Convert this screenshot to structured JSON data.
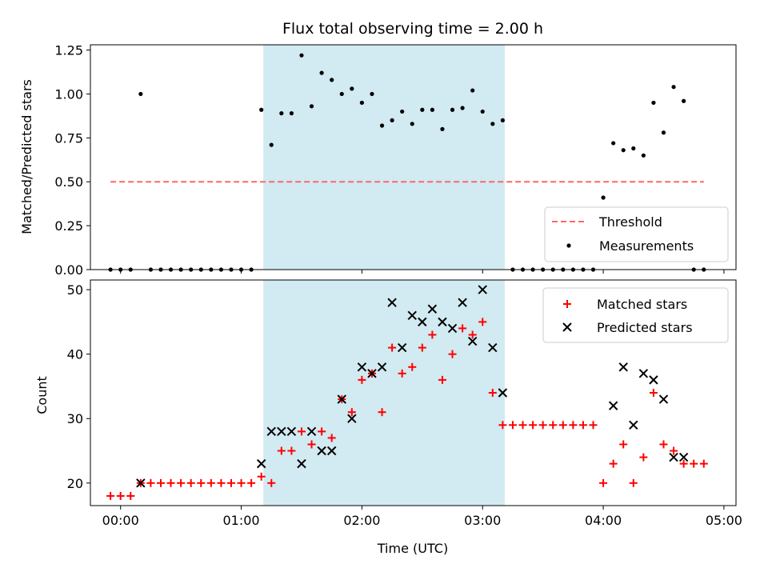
{
  "chart_data": [
    {
      "type": "scatter",
      "title": "Flux total observing time = 2.00 h",
      "ylabel": "Matched/Predicted stars",
      "xlabel": "",
      "ylim": [
        0.0,
        1.28
      ],
      "yticks": [
        "0.00",
        "0.25",
        "0.50",
        "0.75",
        "1.00",
        "1.25"
      ],
      "xlim": [
        "23:45",
        "05:06"
      ],
      "xtick_positions": [
        "00:00",
        "01:00",
        "02:00",
        "03:00",
        "04:00",
        "05:00"
      ],
      "shaded_interval": [
        "01:11",
        "03:11"
      ],
      "shade_color": "#add8e6",
      "threshold": {
        "name": "Threshold",
        "value": 0.5,
        "x_range": [
          "23:55",
          "04:50"
        ],
        "color": "#ff6666"
      },
      "measurements": {
        "name": "Measurements",
        "color": "#000000",
        "points": [
          [
            "23:55",
            0.0
          ],
          [
            "00:00",
            0.0
          ],
          [
            "00:05",
            0.0
          ],
          [
            "00:10",
            1.0
          ],
          [
            "00:15",
            0.0
          ],
          [
            "00:20",
            0.0
          ],
          [
            "00:25",
            0.0
          ],
          [
            "00:30",
            0.0
          ],
          [
            "00:35",
            0.0
          ],
          [
            "00:40",
            0.0
          ],
          [
            "00:45",
            0.0
          ],
          [
            "00:50",
            0.0
          ],
          [
            "00:55",
            0.0
          ],
          [
            "01:00",
            0.0
          ],
          [
            "01:05",
            0.0
          ],
          [
            "01:10",
            0.91
          ],
          [
            "01:15",
            0.71
          ],
          [
            "01:20",
            0.89
          ],
          [
            "01:25",
            0.89
          ],
          [
            "01:30",
            1.22
          ],
          [
            "01:35",
            0.93
          ],
          [
            "01:40",
            1.12
          ],
          [
            "01:45",
            1.08
          ],
          [
            "01:50",
            1.0
          ],
          [
            "01:55",
            1.03
          ],
          [
            "02:00",
            0.95
          ],
          [
            "02:05",
            1.0
          ],
          [
            "02:10",
            0.82
          ],
          [
            "02:15",
            0.85
          ],
          [
            "02:20",
            0.9
          ],
          [
            "02:25",
            0.83
          ],
          [
            "02:30",
            0.91
          ],
          [
            "02:35",
            0.91
          ],
          [
            "02:40",
            0.8
          ],
          [
            "02:45",
            0.91
          ],
          [
            "02:50",
            0.92
          ],
          [
            "02:55",
            1.02
          ],
          [
            "03:00",
            0.9
          ],
          [
            "03:05",
            0.83
          ],
          [
            "03:10",
            0.85
          ],
          [
            "03:15",
            0.0
          ],
          [
            "03:20",
            0.0
          ],
          [
            "03:25",
            0.0
          ],
          [
            "03:30",
            0.0
          ],
          [
            "03:35",
            0.0
          ],
          [
            "03:40",
            0.0
          ],
          [
            "03:45",
            0.0
          ],
          [
            "03:50",
            0.0
          ],
          [
            "03:55",
            0.0
          ],
          [
            "04:00",
            0.41
          ],
          [
            "04:05",
            0.72
          ],
          [
            "04:10",
            0.68
          ],
          [
            "04:15",
            0.69
          ],
          [
            "04:20",
            0.65
          ],
          [
            "04:25",
            0.95
          ],
          [
            "04:30",
            0.78
          ],
          [
            "04:35",
            1.04
          ],
          [
            "04:40",
            0.96
          ],
          [
            "04:45",
            0.0
          ],
          [
            "04:50",
            0.0
          ]
        ]
      },
      "legend": {
        "position": "lower right",
        "entries": [
          "Threshold",
          "Measurements"
        ]
      }
    },
    {
      "type": "scatter",
      "title": "",
      "ylabel": "Count",
      "xlabel": "Time (UTC)",
      "ylim": [
        16.5,
        51.5
      ],
      "yticks": [
        "20",
        "30",
        "40",
        "50"
      ],
      "xlim": [
        "23:45",
        "05:06"
      ],
      "xticks": [
        "00:00",
        "01:00",
        "02:00",
        "03:00",
        "04:00",
        "05:00"
      ],
      "shaded_interval": [
        "01:11",
        "03:11"
      ],
      "shade_color": "#add8e6",
      "series": [
        {
          "name": "Matched stars",
          "marker": "+",
          "color": "#ff0000",
          "points": [
            [
              "23:55",
              18
            ],
            [
              "00:00",
              18
            ],
            [
              "00:05",
              18
            ],
            [
              "00:10",
              20
            ],
            [
              "00:15",
              20
            ],
            [
              "00:20",
              20
            ],
            [
              "00:25",
              20
            ],
            [
              "00:30",
              20
            ],
            [
              "00:35",
              20
            ],
            [
              "00:40",
              20
            ],
            [
              "00:45",
              20
            ],
            [
              "00:50",
              20
            ],
            [
              "00:55",
              20
            ],
            [
              "01:00",
              20
            ],
            [
              "01:05",
              20
            ],
            [
              "01:10",
              21
            ],
            [
              "01:15",
              20
            ],
            [
              "01:20",
              25
            ],
            [
              "01:25",
              25
            ],
            [
              "01:30",
              28
            ],
            [
              "01:35",
              26
            ],
            [
              "01:40",
              28
            ],
            [
              "01:45",
              27
            ],
            [
              "01:50",
              33
            ],
            [
              "01:55",
              31
            ],
            [
              "02:00",
              36
            ],
            [
              "02:05",
              37
            ],
            [
              "02:10",
              31
            ],
            [
              "02:15",
              41
            ],
            [
              "02:20",
              37
            ],
            [
              "02:25",
              38
            ],
            [
              "02:30",
              41
            ],
            [
              "02:35",
              43
            ],
            [
              "02:40",
              36
            ],
            [
              "02:45",
              40
            ],
            [
              "02:50",
              44
            ],
            [
              "02:55",
              43
            ],
            [
              "03:00",
              45
            ],
            [
              "03:05",
              34
            ],
            [
              "03:10",
              29
            ],
            [
              "03:15",
              29
            ],
            [
              "03:20",
              29
            ],
            [
              "03:25",
              29
            ],
            [
              "03:30",
              29
            ],
            [
              "03:35",
              29
            ],
            [
              "03:40",
              29
            ],
            [
              "03:45",
              29
            ],
            [
              "03:50",
              29
            ],
            [
              "03:55",
              29
            ],
            [
              "04:00",
              20
            ],
            [
              "04:05",
              23
            ],
            [
              "04:10",
              26
            ],
            [
              "04:15",
              20
            ],
            [
              "04:20",
              24
            ],
            [
              "04:25",
              34
            ],
            [
              "04:30",
              26
            ],
            [
              "04:35",
              25
            ],
            [
              "04:40",
              23
            ],
            [
              "04:45",
              23
            ],
            [
              "04:50",
              23
            ]
          ]
        },
        {
          "name": "Predicted stars",
          "marker": "x",
          "color": "#000000",
          "points": [
            [
              "00:10",
              20
            ],
            [
              "01:10",
              23
            ],
            [
              "01:15",
              28
            ],
            [
              "01:20",
              28
            ],
            [
              "01:25",
              28
            ],
            [
              "01:30",
              23
            ],
            [
              "01:35",
              28
            ],
            [
              "01:40",
              25
            ],
            [
              "01:45",
              25
            ],
            [
              "01:50",
              33
            ],
            [
              "01:55",
              30
            ],
            [
              "02:00",
              38
            ],
            [
              "02:05",
              37
            ],
            [
              "02:10",
              38
            ],
            [
              "02:15",
              48
            ],
            [
              "02:20",
              41
            ],
            [
              "02:25",
              46
            ],
            [
              "02:30",
              45
            ],
            [
              "02:35",
              47
            ],
            [
              "02:40",
              45
            ],
            [
              "02:45",
              44
            ],
            [
              "02:50",
              48
            ],
            [
              "02:55",
              42
            ],
            [
              "03:00",
              50
            ],
            [
              "03:05",
              41
            ],
            [
              "03:10",
              34
            ],
            [
              "04:05",
              32
            ],
            [
              "04:10",
              38
            ],
            [
              "04:15",
              29
            ],
            [
              "04:20",
              37
            ],
            [
              "04:25",
              36
            ],
            [
              "04:30",
              33
            ],
            [
              "04:35",
              24
            ],
            [
              "04:40",
              24
            ]
          ]
        }
      ],
      "legend": {
        "position": "upper right",
        "entries": [
          "Matched stars",
          "Predicted stars"
        ]
      }
    }
  ]
}
